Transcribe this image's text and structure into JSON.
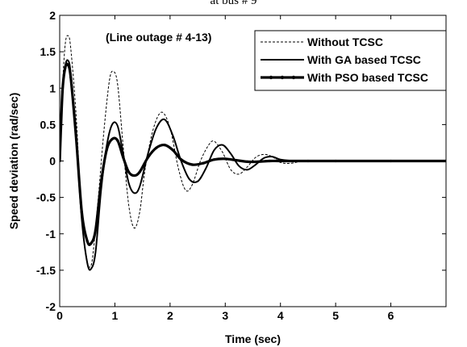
{
  "page_title": "at bus # 9",
  "chart_data": {
    "type": "line",
    "title": "",
    "annotation": "(Line outage # 4-13)",
    "xlabel": "Time (sec)",
    "ylabel": "Speed deviation (rad/sec)",
    "xlim": [
      0,
      7
    ],
    "ylim": [
      -2,
      2
    ],
    "xticks": [
      "0",
      "1",
      "2",
      "3",
      "4",
      "5",
      "6"
    ],
    "yticks": [
      "2",
      "1.5",
      "1",
      "0.5",
      "0",
      "-0.5",
      "-1",
      "-1.5",
      "-2"
    ],
    "grid": false,
    "legend_position": "top-right",
    "series": [
      {
        "name": "Without TCSC",
        "style": "dashed-thin",
        "x": [
          0,
          0.05,
          0.1,
          0.15,
          0.2,
          0.3,
          0.4,
          0.5,
          0.55,
          0.6,
          0.7,
          0.8,
          0.9,
          0.97,
          1.05,
          1.15,
          1.25,
          1.35,
          1.45,
          1.55,
          1.7,
          1.85,
          2.0,
          2.15,
          2.28,
          2.4,
          2.55,
          2.7,
          2.8,
          2.95,
          3.1,
          3.25,
          3.4,
          3.55,
          3.7,
          3.85,
          4.0,
          4.2,
          4.5,
          5.0,
          6.0,
          7.0
        ],
        "y": [
          0,
          1.0,
          1.6,
          1.72,
          1.55,
          0.6,
          -0.8,
          -1.38,
          -1.45,
          -1.3,
          -0.5,
          0.4,
          1.1,
          1.23,
          1.05,
          0.2,
          -0.6,
          -0.92,
          -0.7,
          -0.1,
          0.45,
          0.67,
          0.45,
          -0.1,
          -0.4,
          -0.33,
          0.0,
          0.22,
          0.27,
          0.12,
          -0.12,
          -0.18,
          -0.08,
          0.05,
          0.09,
          0.06,
          -0.02,
          -0.03,
          0.01,
          0.0,
          0.0,
          0.0
        ]
      },
      {
        "name": "With GA based TCSC",
        "style": "solid",
        "x": [
          0,
          0.05,
          0.1,
          0.15,
          0.2,
          0.3,
          0.4,
          0.5,
          0.57,
          0.65,
          0.75,
          0.85,
          0.95,
          1.05,
          1.15,
          1.25,
          1.35,
          1.45,
          1.6,
          1.75,
          1.9,
          2.05,
          2.2,
          2.35,
          2.5,
          2.65,
          2.8,
          2.95,
          3.1,
          3.25,
          3.4,
          3.55,
          3.7,
          3.85,
          4.0,
          4.3,
          5.0,
          6.0,
          7.0
        ],
        "y": [
          0,
          0.9,
          1.3,
          1.38,
          1.2,
          0.3,
          -0.8,
          -1.4,
          -1.48,
          -1.25,
          -0.4,
          0.2,
          0.5,
          0.48,
          0.1,
          -0.3,
          -0.44,
          -0.35,
          0.1,
          0.45,
          0.57,
          0.35,
          0.0,
          -0.25,
          -0.28,
          -0.1,
          0.15,
          0.22,
          0.1,
          -0.07,
          -0.12,
          -0.05,
          0.04,
          0.06,
          0.02,
          0.0,
          0.0,
          0.0,
          0.0
        ]
      },
      {
        "name": "With PSO based TCSC",
        "style": "solid-thick-markers",
        "x": [
          0,
          0.05,
          0.1,
          0.15,
          0.2,
          0.3,
          0.4,
          0.5,
          0.57,
          0.65,
          0.75,
          0.85,
          0.95,
          1.05,
          1.15,
          1.25,
          1.35,
          1.45,
          1.6,
          1.75,
          1.9,
          2.05,
          2.2,
          2.4,
          2.6,
          2.8,
          3.0,
          3.2,
          3.4,
          3.6,
          3.8,
          4.0,
          4.5,
          5.0,
          6.0,
          7.0
        ],
        "y": [
          0,
          0.95,
          1.28,
          1.32,
          1.15,
          0.3,
          -0.7,
          -1.1,
          -1.13,
          -0.95,
          -0.3,
          0.15,
          0.3,
          0.28,
          0.05,
          -0.15,
          -0.2,
          -0.15,
          0.05,
          0.18,
          0.22,
          0.15,
          0.02,
          -0.05,
          -0.03,
          0.02,
          0.03,
          0.01,
          -0.01,
          -0.01,
          0.0,
          0.0,
          0.0,
          0.0,
          0.0,
          0.0
        ]
      }
    ]
  }
}
